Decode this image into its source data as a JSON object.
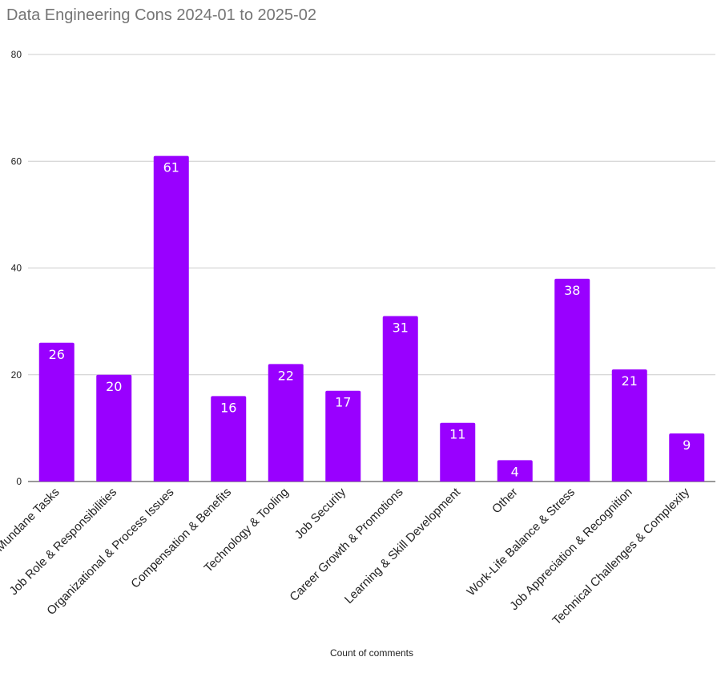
{
  "chart_data": {
    "type": "bar",
    "title": "Data Engineering Cons 2024-01 to 2025-02",
    "xlabel": "Count of comments",
    "ylabel": "",
    "ylim": [
      0,
      80
    ],
    "yticks": [
      0,
      20,
      40,
      60,
      80
    ],
    "grid": true,
    "bar_color": "#9900ff",
    "categories": [
      "Mundane Tasks",
      "Job Role & Responsibilities",
      "Organizational & Process Issues",
      "Compensation & Benefits",
      "Technology & Tooling",
      "Job Security",
      "Career Growth & Promotions",
      "Learning & Skill Development",
      "Other",
      "Work-Life Balance & Stress",
      "Job Appreciation & Recognition",
      "Technical Challenges & Complexity"
    ],
    "values": [
      26,
      20,
      61,
      16,
      22,
      17,
      31,
      11,
      4,
      38,
      21,
      9
    ]
  }
}
